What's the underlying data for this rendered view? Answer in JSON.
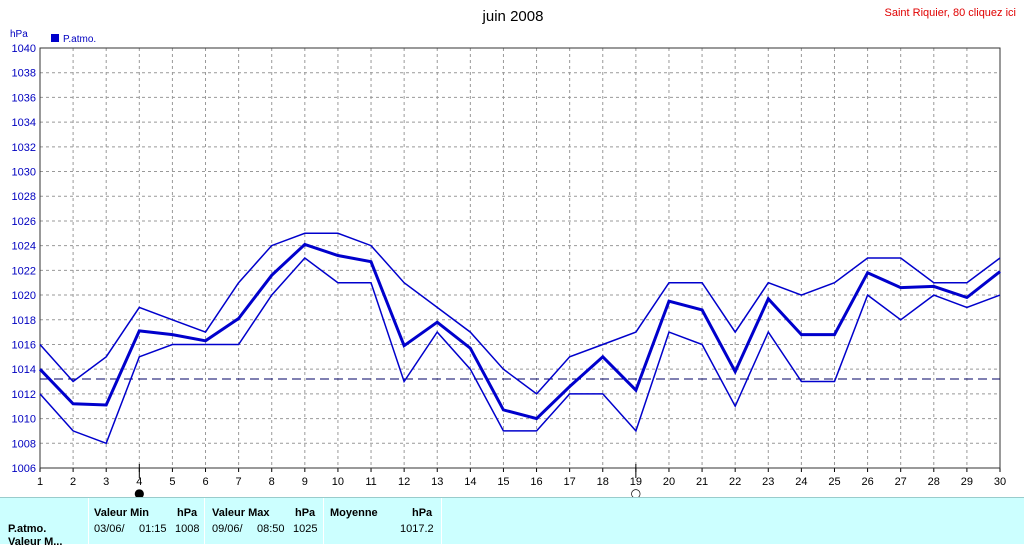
{
  "header": {
    "title": "juin 2008",
    "station_link": "Saint Riquier, 80 cliquez ici"
  },
  "colors": {
    "series": "#0000cc",
    "grid": "#999999",
    "axis_text": "#0000c0",
    "panel": "#ccffff",
    "link": "#e00000"
  },
  "chart_data": {
    "type": "line",
    "y_unit": "hPa",
    "ylim": [
      1006,
      1040
    ],
    "yticks": [
      "1006",
      "1008",
      "1010",
      "1012",
      "1014",
      "1016",
      "1018",
      "1020",
      "1022",
      "1024",
      "1026",
      "1028",
      "1030",
      "1032",
      "1034",
      "1036",
      "1038",
      "1040"
    ],
    "x": [
      1,
      2,
      3,
      4,
      5,
      6,
      7,
      8,
      9,
      10,
      11,
      12,
      13,
      14,
      15,
      16,
      17,
      18,
      19,
      20,
      21,
      22,
      23,
      24,
      25,
      26,
      27,
      28,
      29,
      30
    ],
    "legend": [
      {
        "name": "P.atmo.",
        "placement": "top-left"
      }
    ],
    "grid": true,
    "series": [
      {
        "name": "P.atmo.",
        "role": "max",
        "values": [
          1016,
          1013,
          1015,
          1019,
          1018,
          1017,
          1021,
          1024,
          1025,
          1025,
          1024,
          1021,
          1019,
          1017,
          1014,
          1012,
          1015,
          1016,
          1017,
          1021,
          1021,
          1017,
          1021,
          1020,
          1021,
          1023,
          1023,
          1021,
          1021,
          1023
        ]
      },
      {
        "name": "P.atmo.",
        "role": "mean",
        "values": [
          1014,
          1011.2,
          1011.1,
          1017.1,
          1016.8,
          1016.3,
          1018.1,
          1021.6,
          1024.1,
          1023.2,
          1022.7,
          1015.9,
          1017.8,
          1015.7,
          1010.7,
          1010,
          1012.6,
          1015,
          1012.3,
          1019.5,
          1018.8,
          1013.8,
          1019.7,
          1016.8,
          1016.8,
          1021.8,
          1020.6,
          1020.7,
          1019.8,
          1021.9
        ]
      },
      {
        "name": "P.atmo.",
        "role": "min",
        "values": [
          1012,
          1009,
          1008,
          1015,
          1016,
          1016,
          1016,
          1020,
          1023,
          1021,
          1021,
          1013,
          1017,
          1014,
          1009,
          1009,
          1012,
          1012,
          1009,
          1017,
          1016,
          1011,
          1017,
          1013,
          1013,
          1020,
          1018,
          1020,
          1019,
          1020
        ]
      }
    ],
    "reference_line": {
      "value": 1013.2,
      "style": "dashed"
    },
    "moon_markers": [
      {
        "day": 4,
        "symbol": "●",
        "label": "new-moon"
      },
      {
        "day": 19,
        "symbol": "○",
        "label": "full-moon"
      }
    ]
  },
  "stats": {
    "row_label": "P.atmo.",
    "row_label_2": "Valeur M...",
    "min": {
      "header": "Valeur Min",
      "unit": "hPa",
      "date": "03/06/",
      "time": "01:15",
      "value": "1008"
    },
    "max": {
      "header": "Valeur Max",
      "unit": "hPa",
      "date": "09/06/",
      "time": "08:50",
      "value": "1025"
    },
    "mean": {
      "header": "Moyenne",
      "unit": "hPa",
      "value": "1017.2"
    }
  }
}
